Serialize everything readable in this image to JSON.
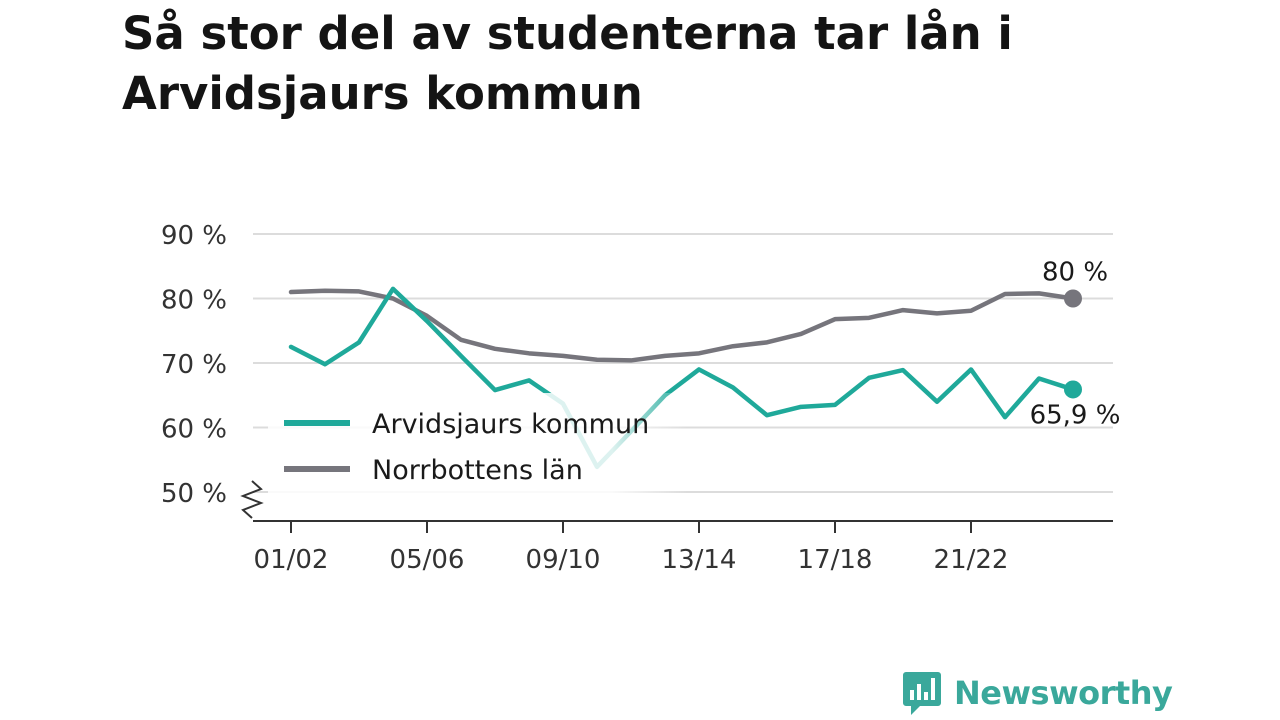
{
  "title": "Så stor del av studenterna tar lån i Arvidsjaurs kommun",
  "brand": {
    "name": "Newsworthy",
    "icon": "newsworthy-logo-icon",
    "color": "#3aa89b"
  },
  "chart_data": {
    "type": "line",
    "title": "Så stor del av studenterna tar lån i Arvidsjaurs kommun",
    "xlabel": "",
    "ylabel": "",
    "ylim": [
      50,
      90
    ],
    "yticks": [
      50,
      60,
      70,
      80,
      90
    ],
    "ytick_labels": [
      "50 %",
      "60 %",
      "70 %",
      "80 %",
      "90 %"
    ],
    "y_axis_break": true,
    "grid": true,
    "legend_position": "bottom-left",
    "categories": [
      "01/02",
      "02/03",
      "03/04",
      "04/05",
      "05/06",
      "06/07",
      "07/08",
      "08/09",
      "09/10",
      "10/11",
      "11/12",
      "12/13",
      "13/14",
      "14/15",
      "15/16",
      "16/17",
      "17/18",
      "18/19",
      "19/20",
      "20/21",
      "21/22",
      "22/23",
      "23/24",
      "24/25"
    ],
    "xtick_labels": [
      "01/02",
      "05/06",
      "09/10",
      "13/14",
      "17/18",
      "21/22"
    ],
    "series": [
      {
        "name": "Arvidsjaurs kommun",
        "color": "#1fa99a",
        "values": [
          72.5,
          69.8,
          73.2,
          81.5,
          76.5,
          71.1,
          65.8,
          67.3,
          63.7,
          53.9,
          59.4,
          65.0,
          69.0,
          66.2,
          61.9,
          63.2,
          63.5,
          67.7,
          68.9,
          64.0,
          69.0,
          61.6,
          67.6,
          65.9
        ],
        "end_label": "65,9 %"
      },
      {
        "name": "Norrbottens län",
        "color": "#76757c",
        "values": [
          81.0,
          81.2,
          81.1,
          80.0,
          77.3,
          73.6,
          72.2,
          71.5,
          71.1,
          70.5,
          70.4,
          71.1,
          71.5,
          72.6,
          73.2,
          74.5,
          76.8,
          77.0,
          78.2,
          77.7,
          78.1,
          80.7,
          80.8,
          80.0
        ],
        "end_label": "80 %"
      }
    ]
  }
}
